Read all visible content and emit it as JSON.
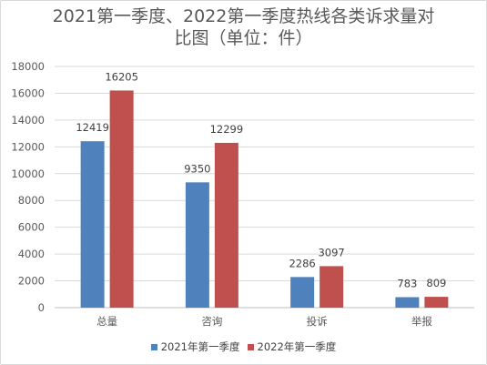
{
  "chart_data": {
    "type": "bar",
    "title_line1": "2021第一季度、2022第一季度热线各类诉求量对",
    "title_line2": "比图（单位：件）",
    "categories": [
      "总量",
      "咨询",
      "投诉",
      "举报"
    ],
    "series": [
      {
        "name": "2021年第一季度",
        "color": "#4f81bd",
        "values": [
          12419,
          9350,
          2286,
          783
        ]
      },
      {
        "name": "2022年第一季度",
        "color": "#c0504d",
        "values": [
          16205,
          12299,
          3097,
          809
        ]
      }
    ],
    "yticks": [
      0,
      2000,
      4000,
      6000,
      8000,
      10000,
      12000,
      14000,
      16000,
      18000
    ],
    "ylim": [
      0,
      18000
    ],
    "grid": true,
    "legend_position": "bottom"
  }
}
